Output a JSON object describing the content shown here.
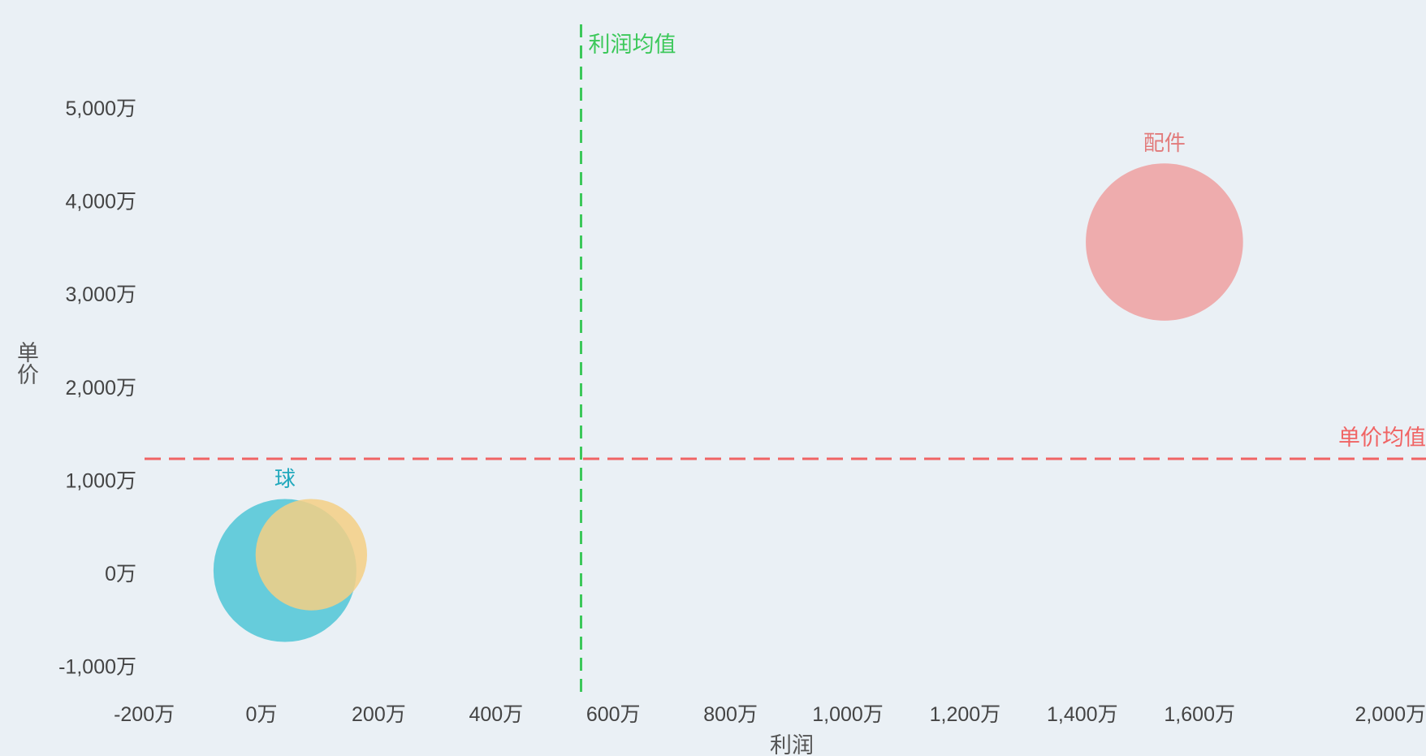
{
  "chart_data": {
    "type": "scatter",
    "subtype": "bubble",
    "xlabel": "利润",
    "ylabel": "单价",
    "x_ticks": [
      {
        "value": -200,
        "label": "-200万"
      },
      {
        "value": 0,
        "label": "0万"
      },
      {
        "value": 200,
        "label": "200万"
      },
      {
        "value": 400,
        "label": "400万"
      },
      {
        "value": 600,
        "label": "600万"
      },
      {
        "value": 800,
        "label": "800万"
      },
      {
        "value": 1000,
        "label": "1,000万"
      },
      {
        "value": 1200,
        "label": "1,200万"
      },
      {
        "value": 1400,
        "label": "1,400万"
      },
      {
        "value": 1600,
        "label": "1,600万"
      },
      {
        "value": 2000,
        "label": "2,000万"
      }
    ],
    "y_ticks": [
      {
        "value": 5000,
        "label": "5,000万"
      },
      {
        "value": 4000,
        "label": "4,000万"
      },
      {
        "value": 3000,
        "label": "3,000万"
      },
      {
        "value": 2000,
        "label": "2,000万"
      },
      {
        "value": 1000,
        "label": "1,000万"
      },
      {
        "value": 0,
        "label": "0万"
      },
      {
        "value": -1000,
        "label": "-1,000万"
      }
    ],
    "grid": false,
    "reference_lines": [
      {
        "axis": "x",
        "value": 545,
        "label": "利润均值",
        "color": "#3cc85a"
      },
      {
        "axis": "y",
        "value": 1230,
        "label": "单价均值",
        "color": "#f06464"
      }
    ],
    "points": [
      {
        "label": "球",
        "x": 40,
        "y": 30,
        "size": 1.0,
        "color": "#4fc6d6"
      },
      {
        "label": "",
        "x": 85,
        "y": 200,
        "size": 0.78,
        "color": "#f5cf84"
      },
      {
        "label": "配件",
        "x": 1540,
        "y": 3560,
        "size": 1.1,
        "color": "#eea0a0"
      }
    ]
  }
}
